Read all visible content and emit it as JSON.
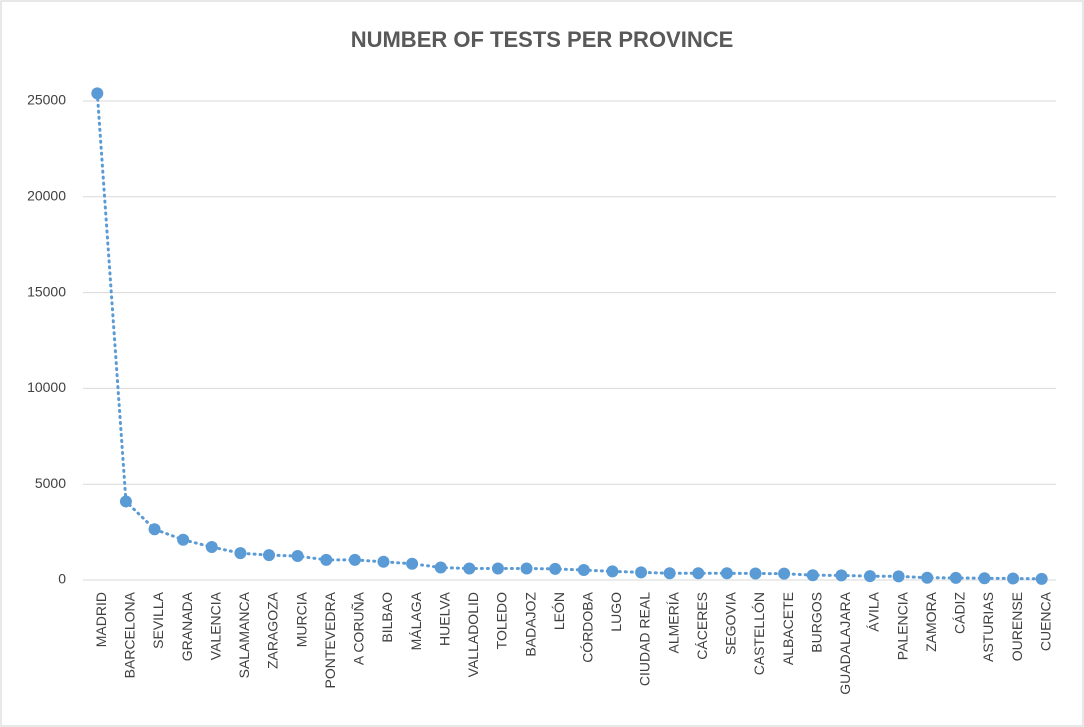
{
  "chart_data": {
    "type": "line",
    "title": "NUMBER OF TESTS PER PROVINCE",
    "categories": [
      "MADRID",
      "BARCELONA",
      "SEVILLA",
      "GRANADA",
      "VALENCIA",
      "SALAMANCA",
      "ZARAGOZA",
      "MURCIA",
      "PONTEVEDRA",
      "A CORUÑA",
      "BILBAO",
      "MÁLAGA",
      "HUELVA",
      "VALLADOLID",
      "TOLEDO",
      "BADAJOZ",
      "LEÓN",
      "CÓRDOBA",
      "LUGO",
      "CIUDAD REAL",
      "ALMERÍA",
      "CÁCERES",
      "SEGOVIA",
      "CASTELLÓN",
      "ALBACETE",
      "BURGOS",
      "GUADALAJARA",
      "ÁVILA",
      "PALENCIA",
      "ZAMORA",
      "CÁDIZ",
      "ASTURIAS",
      "OURENSE",
      "CUENCA"
    ],
    "values": [
      25400,
      4100,
      2650,
      2100,
      1720,
      1400,
      1300,
      1250,
      1050,
      1050,
      950,
      850,
      650,
      600,
      600,
      600,
      580,
      520,
      450,
      400,
      350,
      350,
      350,
      340,
      330,
      250,
      240,
      200,
      190,
      120,
      110,
      90,
      80,
      60
    ],
    "color": "#5b9bd5",
    "ylim": [
      0,
      25000
    ],
    "yticks": [
      0,
      5000,
      10000,
      15000,
      20000,
      25000
    ],
    "grid": true
  }
}
